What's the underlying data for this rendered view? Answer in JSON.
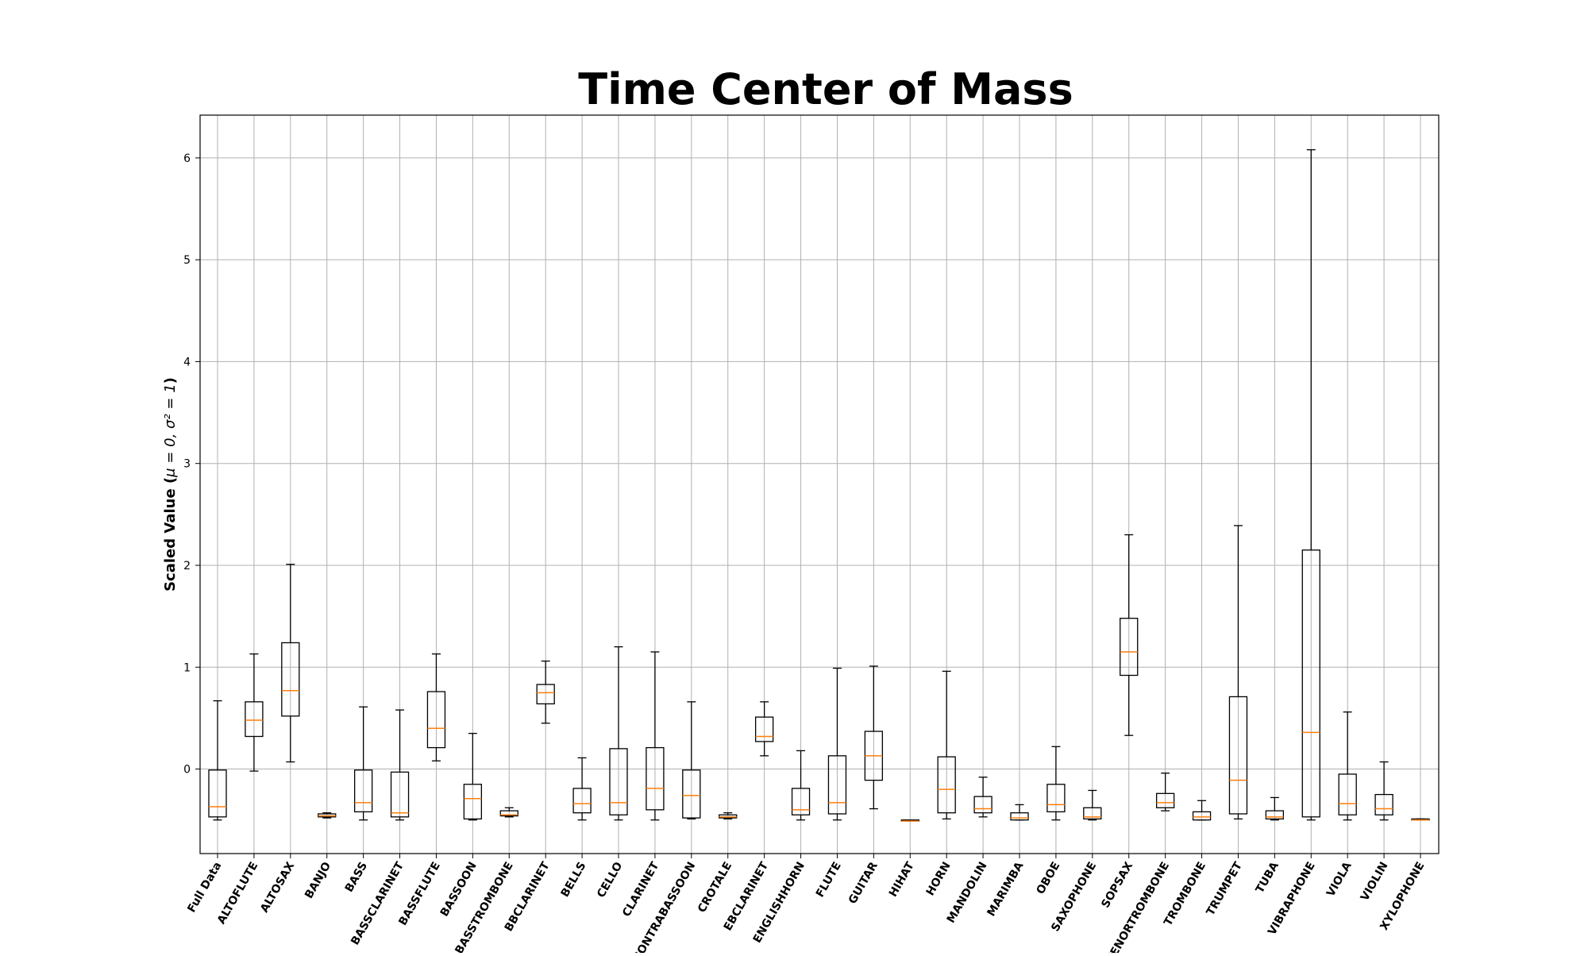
{
  "chart_data": {
    "type": "boxplot",
    "title": "Time Center of Mass",
    "xlabel": "",
    "ylabel_prefix": "Scaled Value (",
    "ylabel_math": "μ = 0, σ² = 1",
    "ylabel_suffix": ")",
    "ylim": [
      -0.83,
      6.42
    ],
    "yticks": [
      0,
      1,
      2,
      3,
      4,
      5,
      6
    ],
    "grid": true,
    "categories": [
      "Full Data",
      "ALTOFLUTE",
      "ALTOSAX",
      "BANJO",
      "BASS",
      "BASSCLARINET",
      "BASSFLUTE",
      "BASSOON",
      "BASSTROMBONE",
      "BBCLARINET",
      "BELLS",
      "CELLO",
      "CLARINET",
      "CONTRABASSOON",
      "CROTALE",
      "EBCLARINET",
      "ENGLISHHORN",
      "FLUTE",
      "GUITAR",
      "HIHAT",
      "HORN",
      "MANDOLIN",
      "MARIMBA",
      "OBOE",
      "SAXOPHONE",
      "SOPSAX",
      "TENORTROMBONE",
      "TROMBONE",
      "TRUMPET",
      "TUBA",
      "VIBRAPHONE",
      "VIOLA",
      "VIOLIN",
      "XYLOPHONE"
    ],
    "series": [
      {
        "name": "Time Center of Mass",
        "boxes": [
          {
            "whislo": -0.5,
            "q1": -0.47,
            "med": -0.37,
            "q3": -0.01,
            "whishi": 0.67
          },
          {
            "whislo": -0.02,
            "q1": 0.32,
            "med": 0.48,
            "q3": 0.66,
            "whishi": 1.13
          },
          {
            "whislo": 0.07,
            "q1": 0.52,
            "med": 0.77,
            "q3": 1.24,
            "whishi": 2.01
          },
          {
            "whislo": -0.48,
            "q1": -0.47,
            "med": -0.46,
            "q3": -0.44,
            "whishi": -0.43
          },
          {
            "whislo": -0.5,
            "q1": -0.42,
            "med": -0.33,
            "q3": -0.01,
            "whishi": 0.61
          },
          {
            "whislo": -0.5,
            "q1": -0.47,
            "med": -0.43,
            "q3": -0.03,
            "whishi": 0.58
          },
          {
            "whislo": 0.08,
            "q1": 0.21,
            "med": 0.4,
            "q3": 0.76,
            "whishi": 1.13
          },
          {
            "whislo": -0.5,
            "q1": -0.49,
            "med": -0.29,
            "q3": -0.15,
            "whishi": 0.35
          },
          {
            "whislo": -0.47,
            "q1": -0.46,
            "med": -0.45,
            "q3": -0.41,
            "whishi": -0.38
          },
          {
            "whislo": 0.45,
            "q1": 0.64,
            "med": 0.75,
            "q3": 0.83,
            "whishi": 1.06
          },
          {
            "whislo": -0.5,
            "q1": -0.43,
            "med": -0.34,
            "q3": -0.19,
            "whishi": 0.11
          },
          {
            "whislo": -0.5,
            "q1": -0.45,
            "med": -0.33,
            "q3": 0.2,
            "whishi": 1.2
          },
          {
            "whislo": -0.5,
            "q1": -0.4,
            "med": -0.19,
            "q3": 0.21,
            "whishi": 1.15
          },
          {
            "whislo": -0.49,
            "q1": -0.48,
            "med": -0.26,
            "q3": -0.01,
            "whishi": 0.66
          },
          {
            "whislo": -0.49,
            "q1": -0.48,
            "med": -0.47,
            "q3": -0.45,
            "whishi": -0.43
          },
          {
            "whislo": 0.13,
            "q1": 0.27,
            "med": 0.32,
            "q3": 0.51,
            "whishi": 0.66
          },
          {
            "whislo": -0.5,
            "q1": -0.45,
            "med": -0.4,
            "q3": -0.19,
            "whishi": 0.18
          },
          {
            "whislo": -0.5,
            "q1": -0.44,
            "med": -0.33,
            "q3": 0.13,
            "whishi": 0.99
          },
          {
            "whislo": -0.39,
            "q1": -0.11,
            "med": 0.13,
            "q3": 0.37,
            "whishi": 1.01
          },
          {
            "whislo": -0.51,
            "q1": -0.51,
            "med": -0.51,
            "q3": -0.5,
            "whishi": -0.5
          },
          {
            "whislo": -0.49,
            "q1": -0.43,
            "med": -0.2,
            "q3": 0.12,
            "whishi": 0.96
          },
          {
            "whislo": -0.47,
            "q1": -0.43,
            "med": -0.39,
            "q3": -0.27,
            "whishi": -0.08
          },
          {
            "whislo": -0.5,
            "q1": -0.5,
            "med": -0.48,
            "q3": -0.43,
            "whishi": -0.35
          },
          {
            "whislo": -0.5,
            "q1": -0.42,
            "med": -0.35,
            "q3": -0.15,
            "whishi": 0.22
          },
          {
            "whislo": -0.5,
            "q1": -0.49,
            "med": -0.47,
            "q3": -0.38,
            "whishi": -0.21
          },
          {
            "whislo": 0.33,
            "q1": 0.92,
            "med": 1.15,
            "q3": 1.48,
            "whishi": 2.3
          },
          {
            "whislo": -0.41,
            "q1": -0.38,
            "med": -0.33,
            "q3": -0.24,
            "whishi": -0.04
          },
          {
            "whislo": -0.5,
            "q1": -0.5,
            "med": -0.47,
            "q3": -0.42,
            "whishi": -0.31
          },
          {
            "whislo": -0.49,
            "q1": -0.44,
            "med": -0.11,
            "q3": 0.71,
            "whishi": 2.39
          },
          {
            "whislo": -0.5,
            "q1": -0.49,
            "med": -0.47,
            "q3": -0.41,
            "whishi": -0.28
          },
          {
            "whislo": -0.5,
            "q1": -0.47,
            "med": 0.36,
            "q3": 2.15,
            "whishi": 6.08
          },
          {
            "whislo": -0.5,
            "q1": -0.45,
            "med": -0.34,
            "q3": -0.05,
            "whishi": 0.56
          },
          {
            "whislo": -0.5,
            "q1": -0.45,
            "med": -0.39,
            "q3": -0.25,
            "whishi": 0.07
          },
          {
            "whislo": -0.5,
            "q1": -0.5,
            "med": -0.5,
            "q3": -0.49,
            "whishi": -0.49
          }
        ]
      }
    ]
  }
}
